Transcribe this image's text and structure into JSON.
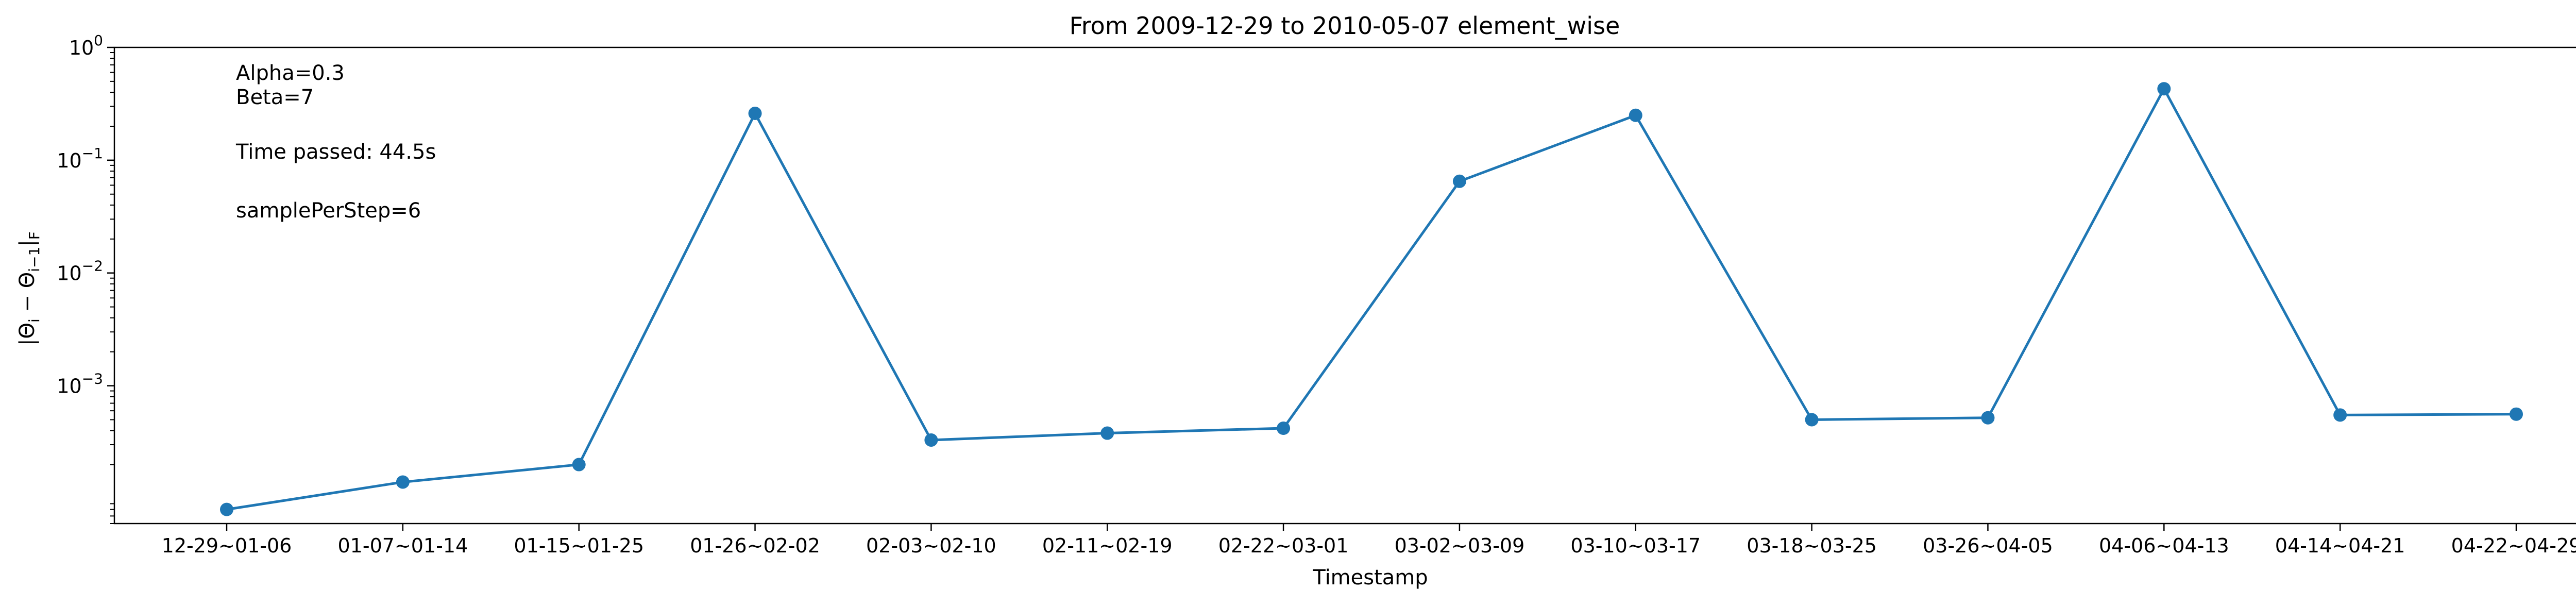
{
  "chart_data": {
    "type": "line",
    "title": "From 2009-12-29 to 2010-05-07 element_wise",
    "xlabel": "Timestamp",
    "ylabel": "|Θ_i − Θ_{i−1}|_F",
    "yscale": "log",
    "ylim": [
      6e-05,
      1
    ],
    "grid": false,
    "categories": [
      "12-29~01-06",
      "01-07~01-14",
      "01-15~01-25",
      "01-26~02-02",
      "02-03~02-10",
      "02-11~02-19",
      "02-22~03-01",
      "03-02~03-09",
      "03-10~03-17",
      "03-18~03-25",
      "03-26~04-05",
      "04-06~04-13",
      "04-14~04-21",
      "04-22~04-29"
    ],
    "series": [
      {
        "values": [
          8e-05,
          0.00014,
          0.0002,
          0.26,
          0.00033,
          0.00038,
          0.00042,
          0.065,
          0.25,
          0.0005,
          0.00052,
          0.43,
          0.00055,
          0.00056
        ]
      }
    ],
    "color": "#1f77b4",
    "yticks": [
      {
        "value": 0.001,
        "base": "10",
        "exp": "−3"
      },
      {
        "value": 0.01,
        "base": "10",
        "exp": "−2"
      },
      {
        "value": 0.1,
        "base": "10",
        "exp": "−1"
      },
      {
        "value": 1,
        "base": "10",
        "exp": "0"
      }
    ],
    "annotations": [
      "Alpha=0.3",
      "Beta=7",
      "Time passed: 44.5s",
      "samplePerStep=6"
    ]
  }
}
